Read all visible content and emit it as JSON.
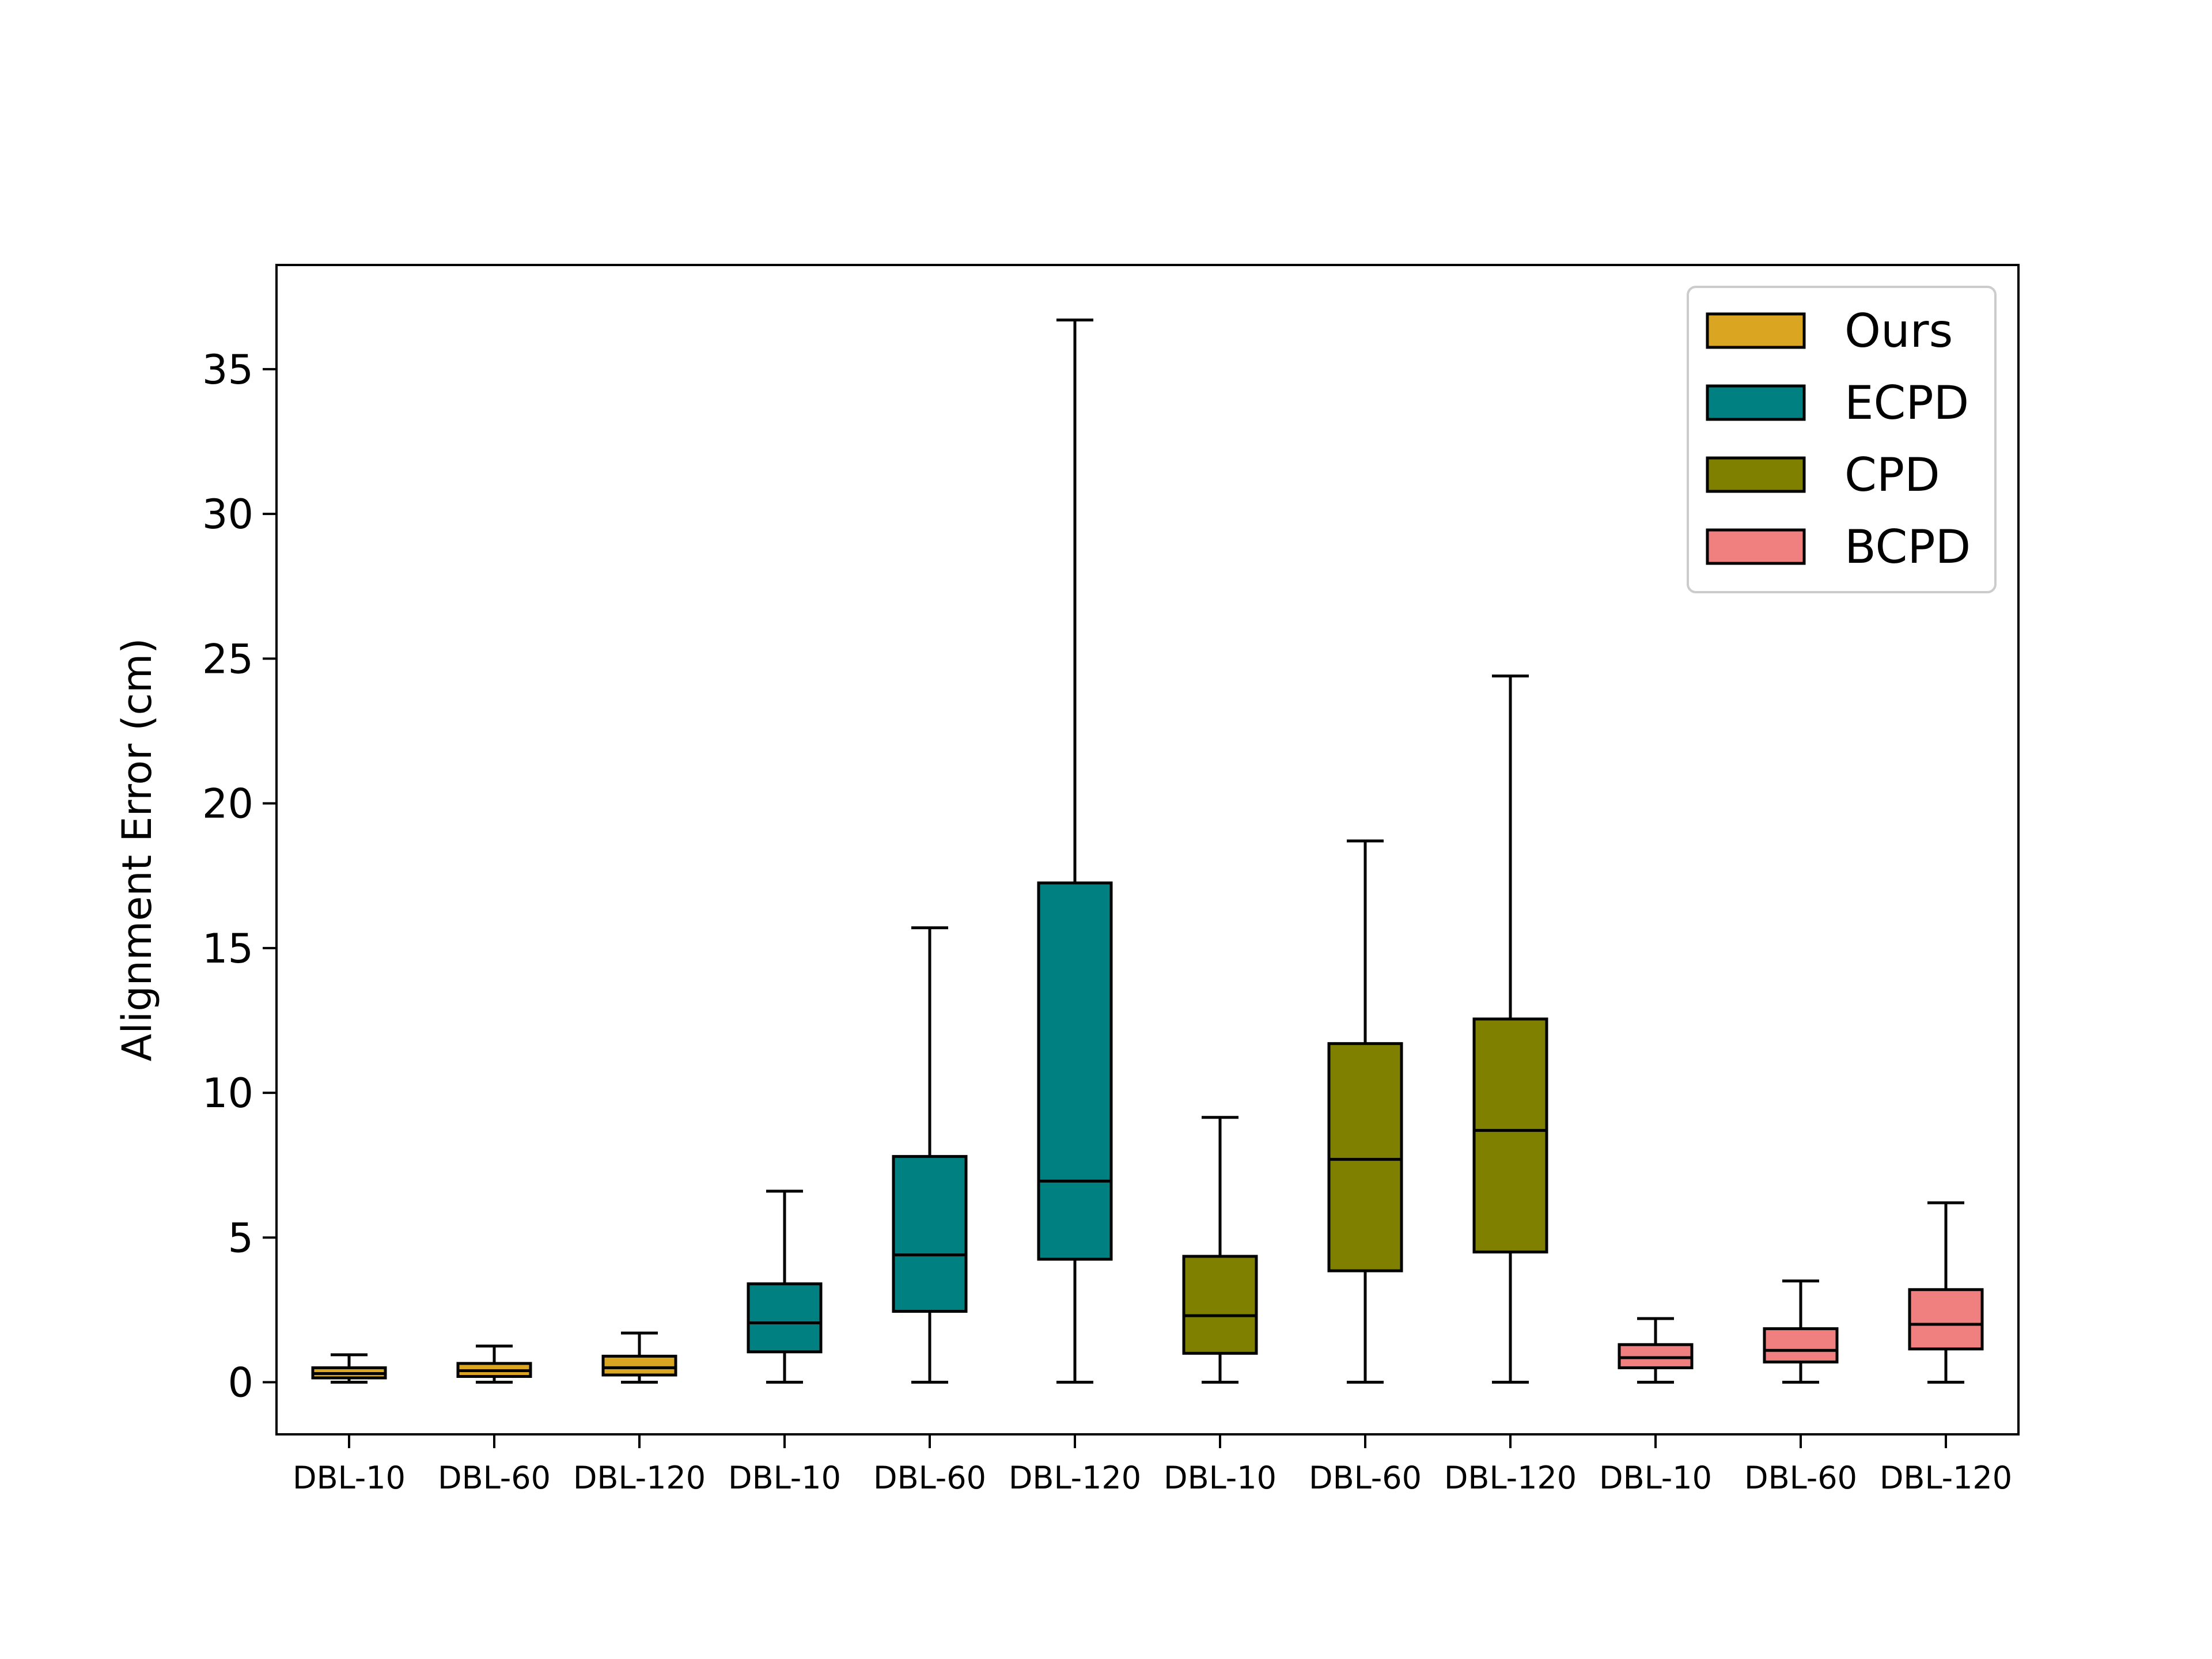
{
  "chart_data": {
    "type": "box",
    "title": "",
    "xlabel": "",
    "ylabel": "Alignment Error (cm)",
    "ylim": [
      -1.8,
      38.6
    ],
    "yticks": [
      0,
      5,
      10,
      15,
      20,
      25,
      30,
      35
    ],
    "grid": false,
    "legend_position": "top-right",
    "categories": [
      "DBL-10",
      "DBL-60",
      "DBL-120",
      "DBL-10",
      "DBL-60",
      "DBL-120",
      "DBL-10",
      "DBL-60",
      "DBL-120",
      "DBL-10",
      "DBL-60",
      "DBL-120"
    ],
    "series": [
      {
        "name": "Ours",
        "color": "#daa520",
        "boxes": [
          {
            "category": "DBL-10",
            "min": 0.0,
            "q1": 0.15,
            "median": 0.3,
            "q3": 0.5,
            "max": 0.95
          },
          {
            "category": "DBL-60",
            "min": 0.0,
            "q1": 0.2,
            "median": 0.4,
            "q3": 0.65,
            "max": 1.25
          },
          {
            "category": "DBL-120",
            "min": 0.0,
            "q1": 0.25,
            "median": 0.5,
            "q3": 0.9,
            "max": 1.7
          }
        ]
      },
      {
        "name": "ECPD",
        "color": "#008080",
        "boxes": [
          {
            "category": "DBL-10",
            "min": 0.0,
            "q1": 1.05,
            "median": 2.05,
            "q3": 3.4,
            "max": 6.6
          },
          {
            "category": "DBL-60",
            "min": 0.0,
            "q1": 2.45,
            "median": 4.4,
            "q3": 7.8,
            "max": 15.7
          },
          {
            "category": "DBL-120",
            "min": 0.0,
            "q1": 4.25,
            "median": 6.95,
            "q3": 17.25,
            "max": 36.7
          }
        ]
      },
      {
        "name": "CPD",
        "color": "#808000",
        "boxes": [
          {
            "category": "DBL-10",
            "min": 0.0,
            "q1": 1.0,
            "median": 2.3,
            "q3": 4.35,
            "max": 9.15
          },
          {
            "category": "DBL-60",
            "min": 0.0,
            "q1": 3.85,
            "median": 7.7,
            "q3": 11.7,
            "max": 18.7
          },
          {
            "category": "DBL-120",
            "min": 0.0,
            "q1": 4.5,
            "median": 8.7,
            "q3": 12.55,
            "max": 24.4
          }
        ]
      },
      {
        "name": "BCPD",
        "color": "#f08080",
        "boxes": [
          {
            "category": "DBL-10",
            "min": 0.0,
            "q1": 0.5,
            "median": 0.85,
            "q3": 1.3,
            "max": 2.2
          },
          {
            "category": "DBL-60",
            "min": 0.0,
            "q1": 0.7,
            "median": 1.1,
            "q3": 1.85,
            "max": 3.5
          },
          {
            "category": "DBL-120",
            "min": 0.0,
            "q1": 1.15,
            "median": 2.0,
            "q3": 3.2,
            "max": 6.2
          }
        ]
      }
    ]
  }
}
